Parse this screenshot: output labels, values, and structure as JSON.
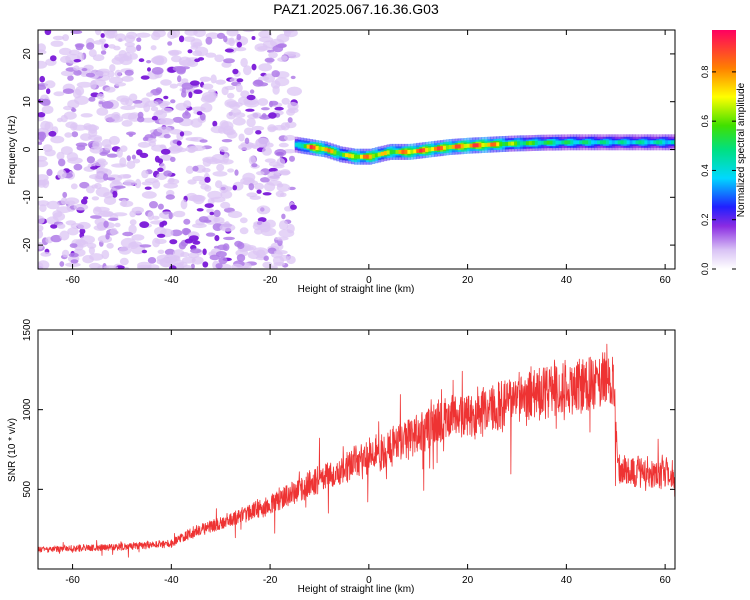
{
  "title": "PAZ1.2025.067.16.36.G03",
  "chart_data": [
    {
      "type": "heatmap",
      "xlabel": "Height of straight line (km)",
      "ylabel": "Frequency (Hz)",
      "xlim": [
        -67,
        62
      ],
      "ylim": [
        -25,
        25
      ],
      "xticks": [
        -60,
        -40,
        -20,
        0,
        20,
        40,
        60
      ],
      "yticks": [
        -20,
        -10,
        0,
        10,
        20
      ],
      "colorbar": {
        "label": "Normalized spectral amplitude",
        "range": [
          0,
          0.97
        ],
        "ticks": [
          0.0,
          0.2,
          0.4,
          0.6,
          0.8
        ]
      },
      "noise_region_x": [
        -67,
        -15
      ],
      "ridge": {
        "x": [
          -15,
          -12,
          -9,
          -6,
          -3,
          0,
          4,
          8,
          12,
          16,
          20,
          24,
          28,
          34,
          40,
          50,
          62
        ],
        "frequency": [
          1.0,
          0.5,
          0.0,
          -1.0,
          -1.5,
          -1.5,
          -0.5,
          -0.5,
          0.0,
          0.5,
          0.8,
          1.0,
          1.2,
          1.4,
          1.5,
          1.5,
          1.5
        ],
        "amplitude": [
          0.45,
          0.95,
          0.9,
          0.7,
          0.85,
          0.9,
          0.75,
          0.95,
          0.95,
          0.9,
          0.97,
          0.95,
          0.7,
          0.6,
          0.55,
          0.5,
          0.5
        ]
      }
    },
    {
      "type": "line",
      "xlabel": "Height of straight line (km)",
      "ylabel": "SNR (10 * v/v)",
      "xlim": [
        -67,
        62
      ],
      "ylim": [
        0,
        1500
      ],
      "xticks": [
        -60,
        -40,
        -20,
        0,
        20,
        40,
        60
      ],
      "yticks": [
        500,
        1000,
        1500
      ],
      "color": "#ee3333",
      "x": [
        -67,
        -60,
        -50,
        -40,
        -35,
        -30,
        -25,
        -20,
        -15,
        -10,
        -5,
        0,
        5,
        10,
        15,
        20,
        25,
        30,
        35,
        40,
        45,
        49.5,
        50.5,
        55,
        62
      ],
      "y": [
        120,
        130,
        140,
        160,
        240,
        290,
        340,
        410,
        480,
        560,
        640,
        700,
        780,
        860,
        920,
        960,
        1000,
        1070,
        1110,
        1140,
        1160,
        1180,
        620,
        610,
        600
      ]
    }
  ]
}
